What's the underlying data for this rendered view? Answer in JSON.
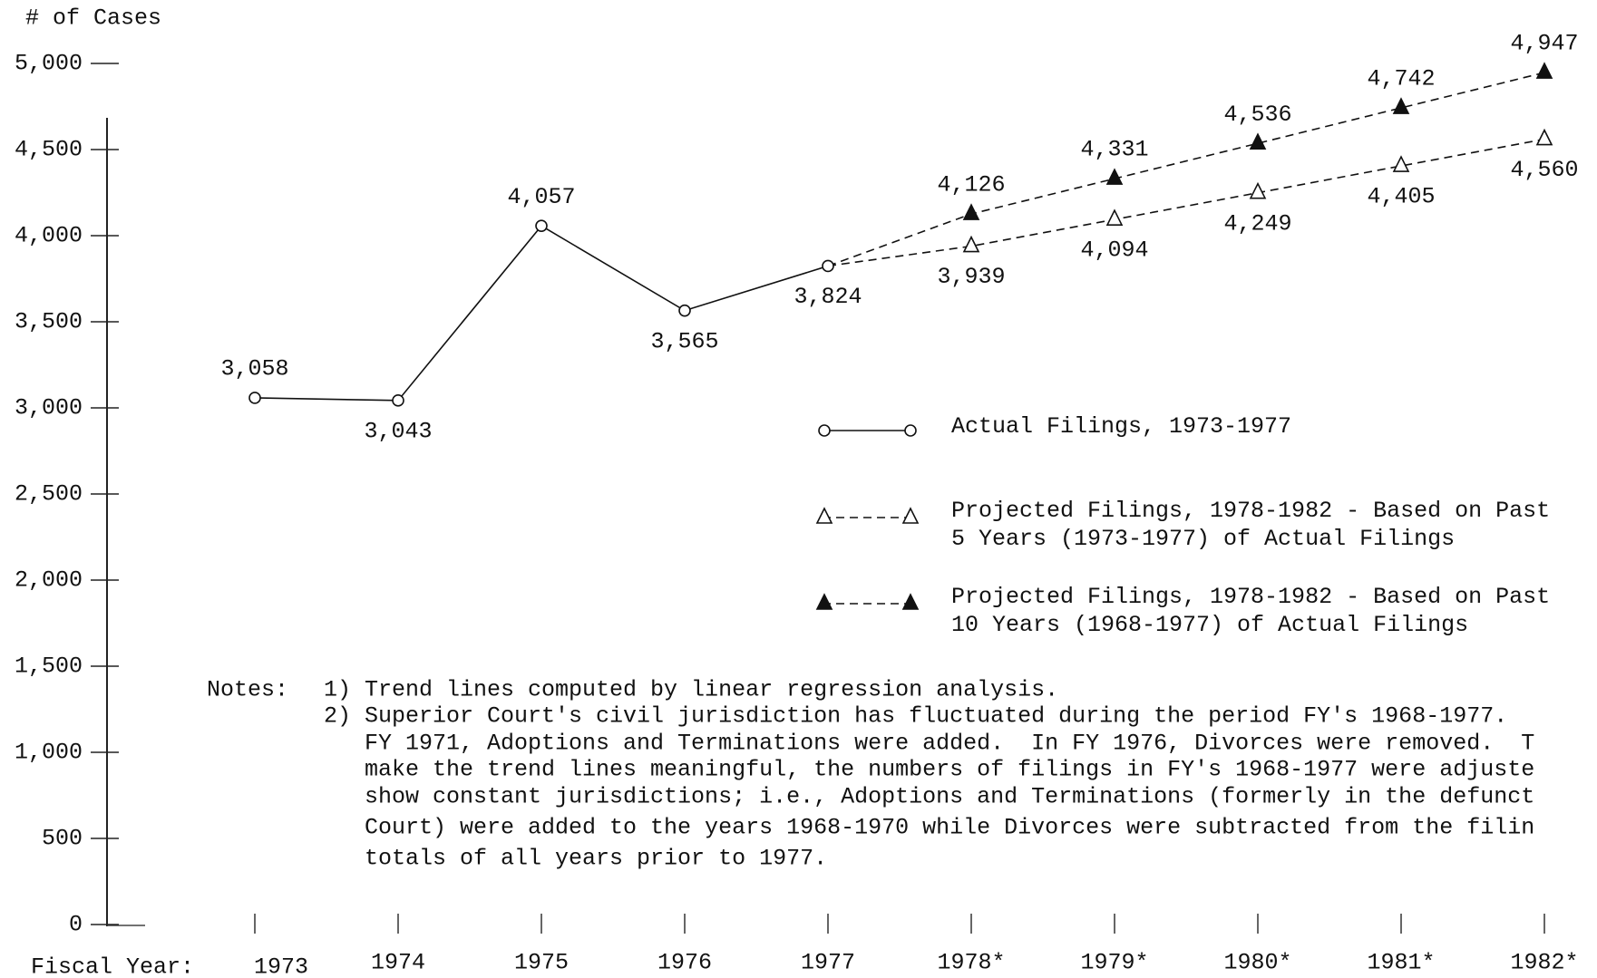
{
  "chart_data": {
    "type": "line",
    "y_axis_label": "# of Cases",
    "x_axis_label": "Fiscal Year:",
    "categories": [
      "1973",
      "1974",
      "1975",
      "1976",
      "1977",
      "1978*",
      "1979*",
      "1980*",
      "1981*",
      "1982*"
    ],
    "ylim": [
      0,
      5000
    ],
    "yticks": [
      0,
      500,
      {
        "value": 1000,
        "label": "1,000"
      },
      {
        "value": 1500,
        "label": "1,500"
      },
      {
        "value": 2000,
        "label": "2,000"
      },
      {
        "value": 2500,
        "label": "2,500"
      },
      {
        "value": 3000,
        "label": "3,000"
      },
      {
        "value": 3500,
        "label": "3,500"
      },
      {
        "value": 4000,
        "label": "4,000"
      },
      {
        "value": 4500,
        "label": "4,500"
      },
      {
        "value": 5000,
        "label": "5,000"
      }
    ],
    "grid": false,
    "series": [
      {
        "name": "Actual Filings, 1973-1977",
        "color": "#111111",
        "line_style": "solid",
        "marker": "circle",
        "marker_filled": false,
        "values": [
          3058,
          3043,
          4057,
          3565,
          3824,
          null,
          null,
          null,
          null,
          null
        ],
        "value_labels": [
          "3,058",
          "3,043",
          "4,057",
          "3,565",
          "3,824",
          null,
          null,
          null,
          null,
          null
        ]
      },
      {
        "name": "Projected Filings, 1978-1982 - Based on Past 5 Years (1973-1977) of Actual Filings",
        "color": "#111111",
        "line_style": "dashed",
        "marker": "triangle",
        "marker_filled": false,
        "values": [
          null,
          null,
          null,
          null,
          3824,
          3939,
          4094,
          4249,
          4405,
          4560
        ],
        "value_labels": [
          null,
          null,
          null,
          null,
          null,
          "3,939",
          "4,094",
          "4,249",
          "4,405",
          "4,560"
        ]
      },
      {
        "name": "Projected Filings, 1978-1982 - Based on Past 10 Years (1968-1977) of Actual Filings",
        "color": "#111111",
        "line_style": "dashed",
        "marker": "triangle",
        "marker_filled": true,
        "values": [
          null,
          null,
          null,
          null,
          3824,
          4126,
          4331,
          4536,
          4742,
          4947
        ],
        "value_labels": [
          null,
          null,
          null,
          null,
          null,
          "4,126",
          "4,331",
          "4,536",
          "4,742",
          "4,947"
        ]
      }
    ],
    "notes": {
      "label": "Notes:",
      "items": [
        {
          "number": "1)",
          "lines": [
            "Trend lines computed by linear regression analysis."
          ]
        },
        {
          "number": "2)",
          "lines": [
            "Superior Court's civil jurisdiction has fluctuated during the period FY's 1968-1977.",
            "FY 1971, Adoptions and Terminations were added.  In FY 1976, Divorces were removed.  T",
            "make the trend lines meaningful, the numbers of filings in FY's 1968-1977 were adjuste",
            "show constant jurisdictions; i.e., Adoptions and Terminations (formerly in the defunct",
            "Court) were added to the years 1968-1970 while Divorces were subtracted from the filin",
            "totals of all years prior to 1977."
          ]
        }
      ]
    }
  }
}
